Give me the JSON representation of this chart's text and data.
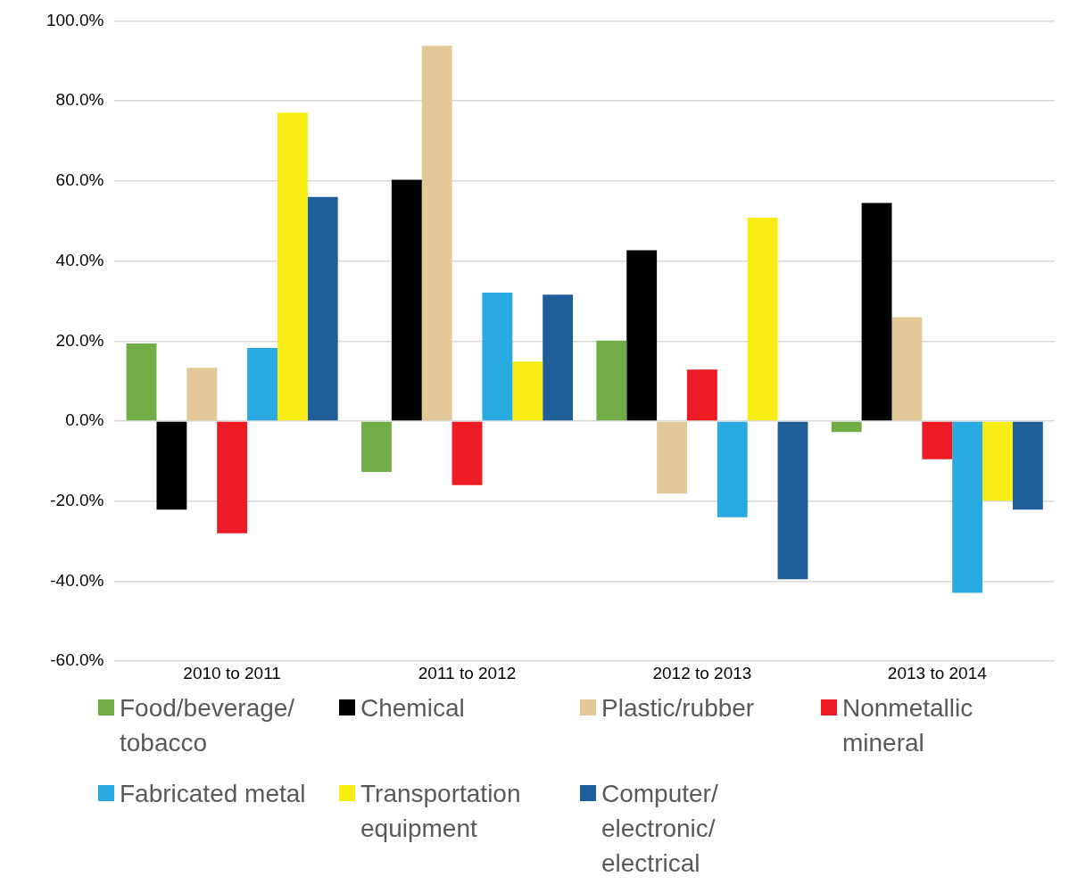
{
  "chart_data": {
    "type": "bar",
    "categories": [
      "2010 to 2011",
      "2011 to 2012",
      "2012 to 2013",
      "2013 to 2014"
    ],
    "series": [
      {
        "name": "Food/beverage/tobacco",
        "color": "#70ad47",
        "values": [
          19.4,
          -12.7,
          20.1,
          -2.7
        ]
      },
      {
        "name": "Chemical",
        "color": "#000000",
        "values": [
          -22.1,
          60.3,
          42.7,
          54.5
        ]
      },
      {
        "name": "Plastic/rubber",
        "color": "#e2c997",
        "values": [
          13.3,
          93.8,
          -18.1,
          26.0
        ]
      },
      {
        "name": "Nonmetallic mineral",
        "color": "#ed1c24",
        "values": [
          -28.0,
          -16.0,
          12.9,
          -9.5
        ]
      },
      {
        "name": "Fabricated metal",
        "color": "#29abe2",
        "values": [
          18.3,
          32.1,
          -24.0,
          -42.9
        ]
      },
      {
        "name": "Transportation equipment",
        "color": "#f7ec13",
        "values": [
          77.1,
          14.9,
          50.8,
          -19.9
        ]
      },
      {
        "name": "Computer/electronic/electrical",
        "color": "#1f5f99",
        "values": [
          56.0,
          31.6,
          -39.5,
          -22.1
        ]
      }
    ],
    "ylim": [
      -60,
      100
    ],
    "yticks": [
      {
        "value": -60,
        "label": "-60.0%"
      },
      {
        "value": -40,
        "label": "-40.0%"
      },
      {
        "value": -20,
        "label": "-20.0%"
      },
      {
        "value": 0,
        "label": "0.0%"
      },
      {
        "value": 20,
        "label": "20.0%"
      },
      {
        "value": 40,
        "label": "40.0%"
      },
      {
        "value": 60,
        "label": "60.0%"
      },
      {
        "value": 80,
        "label": "80.0%"
      },
      {
        "value": 100,
        "label": "100.0%"
      }
    ],
    "grid": "y",
    "legend": "bottom"
  }
}
